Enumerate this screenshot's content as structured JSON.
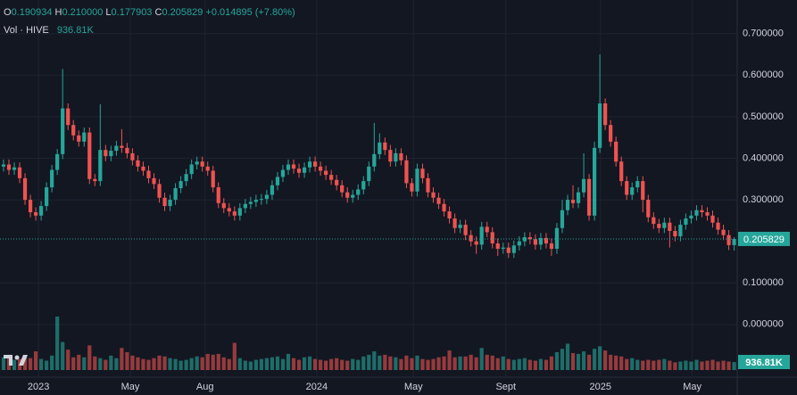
{
  "header": {
    "o_key": "O",
    "o": "0.190934",
    "h_key": "H",
    "h": "0.210000",
    "l_key": "L",
    "l": "0.177903",
    "c_key": "C",
    "c": "0.205829",
    "change": "+0.014895 (+7.80%)",
    "vol_key": "Vol · HIVE",
    "vol": "936.81K"
  },
  "chart_data": {
    "type": "candlestick",
    "up_color": "#26a69a",
    "down_color": "#ef5350",
    "grid": true,
    "xlim": [
      -0.66,
      136.4
    ],
    "xticks": [
      {
        "value": 6.5,
        "label": "2023"
      },
      {
        "value": 23.6,
        "label": "May"
      },
      {
        "value": 37.5,
        "label": "Aug"
      },
      {
        "value": 58.3,
        "label": "2024"
      },
      {
        "value": 76.3,
        "label": "May"
      },
      {
        "value": 93.5,
        "label": "Sept"
      },
      {
        "value": 111.1,
        "label": "2025"
      },
      {
        "value": 128.2,
        "label": "May"
      }
    ],
    "ylim": [
      -0.127,
      0.781
    ],
    "yticks": [
      {
        "value": 0.7,
        "label": "0.700000"
      },
      {
        "value": 0.6,
        "label": "0.600000"
      },
      {
        "value": 0.5,
        "label": "0.500000"
      },
      {
        "value": 0.4,
        "label": "0.400000"
      },
      {
        "value": 0.3,
        "label": "0.300000"
      },
      {
        "value": 0.1,
        "label": "0.100000"
      },
      {
        "value": 0,
        "label": "0.000000"
      }
    ],
    "open": [
      0.38,
      0.385,
      0.372,
      0.378,
      0.352,
      0.3,
      0.27,
      0.262,
      0.285,
      0.33,
      0.372,
      0.41,
      0.52,
      0.48,
      0.455,
      0.44,
      0.462,
      0.35,
      0.345,
      0.42,
      0.405,
      0.418,
      0.43,
      0.425,
      0.412,
      0.395,
      0.38,
      0.37,
      0.352,
      0.338,
      0.305,
      0.285,
      0.3,
      0.328,
      0.345,
      0.362,
      0.385,
      0.392,
      0.38,
      0.37,
      0.33,
      0.292,
      0.28,
      0.272,
      0.262,
      0.28,
      0.29,
      0.295,
      0.3,
      0.302,
      0.312,
      0.335,
      0.355,
      0.372,
      0.385,
      0.375,
      0.365,
      0.378,
      0.392,
      0.38,
      0.37,
      0.36,
      0.348,
      0.335,
      0.318,
      0.305,
      0.312,
      0.325,
      0.345,
      0.38,
      0.41,
      0.438,
      0.42,
      0.392,
      0.412,
      0.395,
      0.34,
      0.32,
      0.375,
      0.352,
      0.318,
      0.305,
      0.29,
      0.272,
      0.255,
      0.232,
      0.24,
      0.215,
      0.2,
      0.192,
      0.235,
      0.222,
      0.195,
      0.182,
      0.185,
      0.172,
      0.19,
      0.2,
      0.21,
      0.205,
      0.192,
      0.208,
      0.195,
      0.182,
      0.232,
      0.275,
      0.3,
      0.292,
      0.318,
      0.35,
      0.262,
      0.425,
      0.532,
      0.48,
      0.44,
      0.392,
      0.345,
      0.312,
      0.33,
      0.345,
      0.3,
      0.258,
      0.242,
      0.232,
      0.245,
      0.225,
      0.212,
      0.24,
      0.255,
      0.262,
      0.275,
      0.27,
      0.262,
      0.245,
      0.228,
      0.215,
      0.190934
    ],
    "high": [
      0.397,
      0.397,
      0.39,
      0.39,
      0.364,
      0.312,
      0.282,
      0.297,
      0.342,
      0.384,
      0.422,
      0.615,
      0.532,
      0.492,
      0.467,
      0.474,
      0.474,
      0.362,
      0.53,
      0.432,
      0.43,
      0.442,
      0.47,
      0.437,
      0.424,
      0.407,
      0.392,
      0.382,
      0.364,
      0.35,
      0.317,
      0.312,
      0.34,
      0.357,
      0.374,
      0.397,
      0.404,
      0.404,
      0.392,
      0.382,
      0.342,
      0.304,
      0.292,
      0.284,
      0.292,
      0.302,
      0.307,
      0.312,
      0.314,
      0.324,
      0.347,
      0.367,
      0.384,
      0.397,
      0.397,
      0.387,
      0.39,
      0.404,
      0.404,
      0.392,
      0.382,
      0.372,
      0.36,
      0.347,
      0.33,
      0.324,
      0.337,
      0.357,
      0.392,
      0.485,
      0.46,
      0.45,
      0.432,
      0.424,
      0.424,
      0.407,
      0.352,
      0.387,
      0.387,
      0.364,
      0.33,
      0.317,
      0.302,
      0.284,
      0.267,
      0.252,
      0.252,
      0.227,
      0.212,
      0.247,
      0.247,
      0.234,
      0.207,
      0.197,
      0.197,
      0.202,
      0.212,
      0.222,
      0.222,
      0.217,
      0.22,
      0.22,
      0.207,
      0.244,
      0.3,
      0.312,
      0.335,
      0.33,
      0.412,
      0.362,
      0.44,
      0.65,
      0.544,
      0.492,
      0.452,
      0.404,
      0.357,
      0.342,
      0.357,
      0.357,
      0.312,
      0.27,
      0.254,
      0.257,
      0.257,
      0.237,
      0.252,
      0.267,
      0.274,
      0.287,
      0.287,
      0.282,
      0.274,
      0.257,
      0.24,
      0.227,
      0.21
    ],
    "low": [
      0.368,
      0.36,
      0.36,
      0.34,
      0.288,
      0.258,
      0.25,
      0.25,
      0.273,
      0.318,
      0.36,
      0.398,
      0.468,
      0.443,
      0.428,
      0.428,
      0.338,
      0.333,
      0.333,
      0.393,
      0.393,
      0.406,
      0.413,
      0.4,
      0.383,
      0.368,
      0.358,
      0.34,
      0.326,
      0.293,
      0.273,
      0.273,
      0.288,
      0.316,
      0.333,
      0.35,
      0.373,
      0.368,
      0.358,
      0.318,
      0.28,
      0.268,
      0.26,
      0.25,
      0.25,
      0.268,
      0.278,
      0.283,
      0.288,
      0.29,
      0.3,
      0.323,
      0.343,
      0.36,
      0.363,
      0.353,
      0.353,
      0.366,
      0.368,
      0.358,
      0.348,
      0.336,
      0.323,
      0.306,
      0.293,
      0.293,
      0.3,
      0.313,
      0.333,
      0.368,
      0.398,
      0.408,
      0.38,
      0.38,
      0.383,
      0.328,
      0.308,
      0.308,
      0.34,
      0.306,
      0.293,
      0.278,
      0.26,
      0.243,
      0.22,
      0.22,
      0.203,
      0.188,
      0.17,
      0.18,
      0.21,
      0.183,
      0.165,
      0.17,
      0.16,
      0.16,
      0.178,
      0.188,
      0.193,
      0.18,
      0.18,
      0.183,
      0.165,
      0.17,
      0.22,
      0.263,
      0.28,
      0.28,
      0.306,
      0.25,
      0.25,
      0.413,
      0.468,
      0.428,
      0.38,
      0.333,
      0.3,
      0.3,
      0.318,
      0.27,
      0.246,
      0.23,
      0.22,
      0.22,
      0.185,
      0.2,
      0.2,
      0.228,
      0.243,
      0.25,
      0.258,
      0.25,
      0.233,
      0.216,
      0.203,
      0.179,
      0.177903
    ],
    "close": [
      0.385,
      0.372,
      0.378,
      0.352,
      0.3,
      0.27,
      0.262,
      0.285,
      0.33,
      0.372,
      0.41,
      0.52,
      0.48,
      0.455,
      0.44,
      0.462,
      0.35,
      0.345,
      0.42,
      0.405,
      0.418,
      0.43,
      0.425,
      0.412,
      0.395,
      0.38,
      0.37,
      0.352,
      0.338,
      0.305,
      0.285,
      0.3,
      0.328,
      0.345,
      0.362,
      0.385,
      0.392,
      0.38,
      0.37,
      0.33,
      0.292,
      0.28,
      0.272,
      0.262,
      0.28,
      0.29,
      0.295,
      0.3,
      0.302,
      0.312,
      0.335,
      0.355,
      0.372,
      0.385,
      0.375,
      0.365,
      0.378,
      0.392,
      0.38,
      0.37,
      0.36,
      0.348,
      0.335,
      0.318,
      0.305,
      0.312,
      0.325,
      0.345,
      0.38,
      0.41,
      0.438,
      0.42,
      0.392,
      0.412,
      0.395,
      0.34,
      0.32,
      0.375,
      0.352,
      0.318,
      0.305,
      0.29,
      0.272,
      0.255,
      0.232,
      0.24,
      0.215,
      0.2,
      0.192,
      0.235,
      0.222,
      0.195,
      0.182,
      0.185,
      0.172,
      0.19,
      0.2,
      0.21,
      0.205,
      0.192,
      0.208,
      0.195,
      0.182,
      0.232,
      0.275,
      0.3,
      0.292,
      0.318,
      0.35,
      0.262,
      0.425,
      0.532,
      0.48,
      0.44,
      0.392,
      0.345,
      0.312,
      0.33,
      0.345,
      0.3,
      0.258,
      0.242,
      0.232,
      0.245,
      0.225,
      0.212,
      0.24,
      0.255,
      0.262,
      0.275,
      0.27,
      0.262,
      0.245,
      0.228,
      0.215,
      0.190934,
      0.205829
    ],
    "volume": [
      1500000,
      1800000,
      1200000,
      1300000,
      1600000,
      1400000,
      2200000,
      1300000,
      1100000,
      1700000,
      6300000,
      3300000,
      2400000,
      1500000,
      1800000,
      1500000,
      2900000,
      1600000,
      1400000,
      1200000,
      1700000,
      1400000,
      2600000,
      2100000,
      1700000,
      1500000,
      1300000,
      1200000,
      1400000,
      1700000,
      1600000,
      1400000,
      1300000,
      1100000,
      1200000,
      1400000,
      1600000,
      1500000,
      1900000,
      1800000,
      1900000,
      1500000,
      1300000,
      3200000,
      1400000,
      1100000,
      1000000,
      1200000,
      1300000,
      1400000,
      1500000,
      1600000,
      1300000,
      1900000,
      1400000,
      1200000,
      1500000,
      1600000,
      1300000,
      1200000,
      1100000,
      1300000,
      1400000,
      1200000,
      1100000,
      1300000,
      1200000,
      1600000,
      1800000,
      2200000,
      1700000,
      1800000,
      1600000,
      1500000,
      1300000,
      1700000,
      1400000,
      1700000,
      1300000,
      1200000,
      1300000,
      1500000,
      1600000,
      2300000,
      1500000,
      1600000,
      1600000,
      1800000,
      1500000,
      2600000,
      1800000,
      1700000,
      1400000,
      1600000,
      1300000,
      1200000,
      1300000,
      1400000,
      1200000,
      1100000,
      1300000,
      1200000,
      1600000,
      2100000,
      2500000,
      3100000,
      2000000,
      1900000,
      2200000,
      1800000,
      2500000,
      2800000,
      2300000,
      1800000,
      1700000,
      1600000,
      1300000,
      1400000,
      1200000,
      1100000,
      1200000,
      1100000,
      1200000,
      1300000,
      1100000,
      900000,
      1000000,
      1100000,
      1000000,
      1200000,
      1000000,
      1100000,
      1200000,
      1000000,
      1100000,
      1000000,
      936810
    ]
  }
}
